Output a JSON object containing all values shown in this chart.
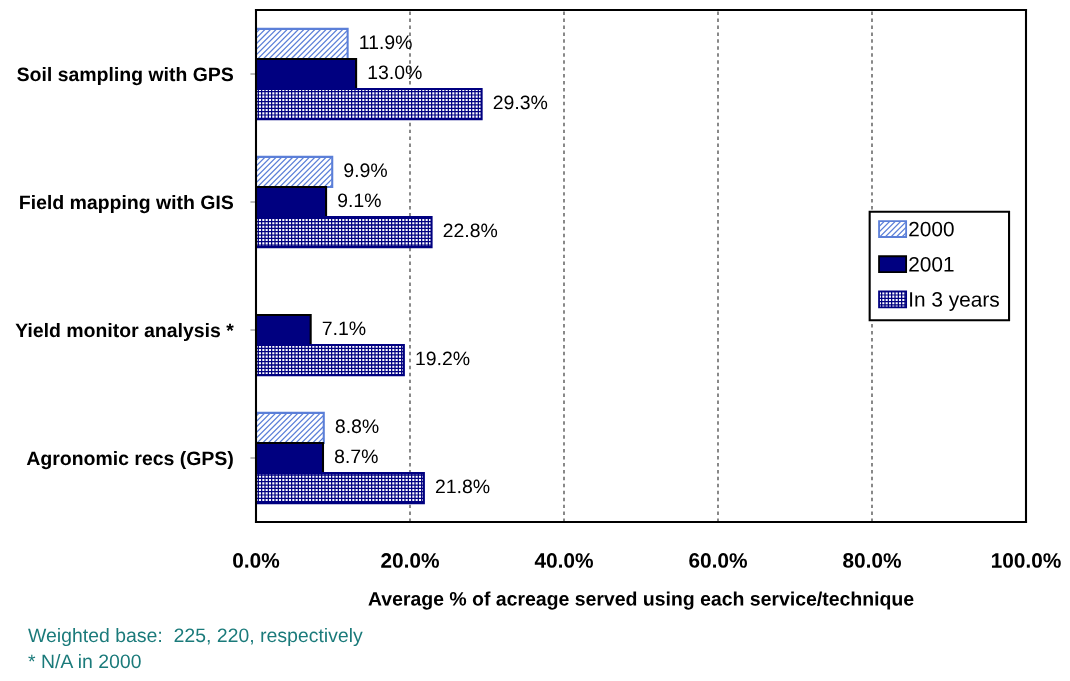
{
  "chart_data": {
    "type": "bar",
    "orientation": "horizontal",
    "categories": [
      "Soil sampling with GPS",
      "Field mapping with GIS",
      "Yield monitor analysis *",
      "Agronomic recs (GPS)"
    ],
    "series": [
      {
        "name": "2000",
        "color": "#5b7fd8",
        "values": [
          11.9,
          9.9,
          null,
          8.8
        ],
        "value_labels": [
          "11.9%",
          "9.9%",
          null,
          "8.8%"
        ]
      },
      {
        "name": "2001",
        "color": "#000080",
        "values": [
          13.0,
          9.1,
          7.1,
          8.7
        ],
        "value_labels": [
          "13.0%",
          "9.1%",
          "7.1%",
          "8.7%"
        ]
      },
      {
        "name": "In 3 years",
        "color": "#000080",
        "values": [
          29.3,
          22.8,
          19.2,
          21.8
        ],
        "value_labels": [
          "29.3%",
          "22.8%",
          "19.2%",
          "21.8%"
        ]
      }
    ],
    "xlim": [
      0,
      100
    ],
    "xticks": [
      {
        "value": 0,
        "label": "0.0%"
      },
      {
        "value": 20,
        "label": "20.0%"
      },
      {
        "value": 40,
        "label": "40.0%"
      },
      {
        "value": 60,
        "label": "60.0%"
      },
      {
        "value": 80,
        "label": "80.0%"
      },
      {
        "value": 100,
        "label": "100.0%"
      }
    ],
    "xlabel": "Average % of acreage served using each service/technique",
    "grid": "x",
    "legend": "right",
    "annotations": [
      "Weighted base:  225, 220, respectively",
      "* N/A in 2000"
    ]
  }
}
